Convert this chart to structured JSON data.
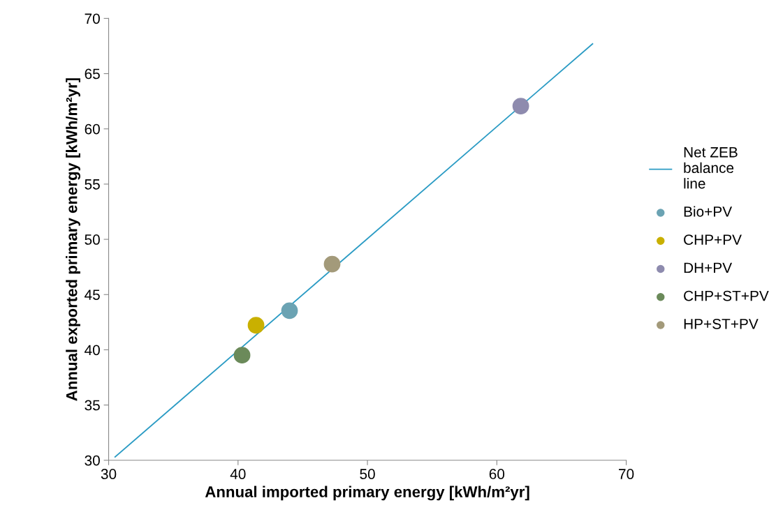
{
  "chart_data": {
    "type": "scatter",
    "xlabel": "Annual imported primary energy [kWh/m²yr]",
    "ylabel": "Annual exported primary energy [kWh/m²yr]",
    "xlim": [
      30,
      70
    ],
    "xticks": [
      30,
      40,
      50,
      60,
      70
    ],
    "ylim": [
      30,
      70
    ],
    "yticks": [
      30,
      35,
      40,
      45,
      50,
      55,
      60,
      65,
      70
    ],
    "grid": false,
    "legend": "right",
    "series": [
      {
        "name": "Net ZEB\nbalance\nline",
        "type": "line",
        "marker": "none",
        "color": "#2a9bc4",
        "x": [
          30.5,
          67.4
        ],
        "values": [
          30.3,
          67.7
        ]
      },
      {
        "name": "Bio+PV",
        "marker": "circle",
        "color": "#6ba3b3",
        "x": [
          43.98
        ],
        "values": [
          43.54
        ]
      },
      {
        "name": "CHP+PV",
        "marker": "circle",
        "color": "#c9b000",
        "x": [
          41.39
        ],
        "values": [
          42.22
        ]
      },
      {
        "name": "DH+PV",
        "marker": "circle",
        "color": "#8e8bae",
        "x": [
          61.85
        ],
        "values": [
          62.06
        ]
      },
      {
        "name": "CHP+ST+PV",
        "marker": "circle",
        "color": "#6b8a5a",
        "x": [
          40.31
        ],
        "values": [
          39.51
        ]
      },
      {
        "name": "HP+ST+PV",
        "marker": "circle",
        "color": "#a39a7a",
        "x": [
          47.27
        ],
        "values": [
          47.76
        ]
      }
    ]
  }
}
